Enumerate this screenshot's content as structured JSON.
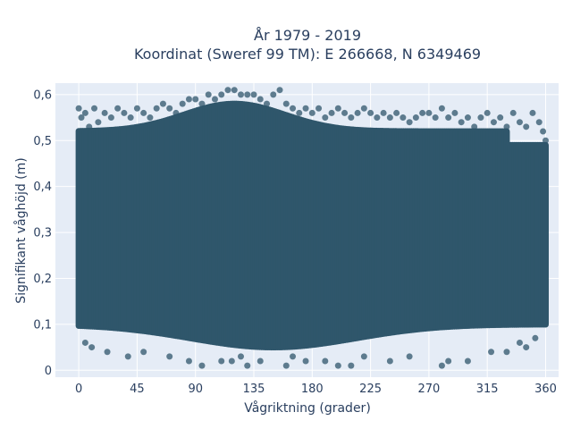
{
  "chart_data": {
    "type": "scatter",
    "title_line1": "År 1979 - 2019",
    "title_line2": "Koordinat (Sweref 99 TM): E 266668, N 6349469",
    "xlabel": "Vågriktning (grader)",
    "ylabel": "Signifikant våghöjd (m)",
    "xlim": [
      -18,
      370
    ],
    "ylim": [
      -0.015,
      0.625
    ],
    "x_ticks": [
      0,
      45,
      90,
      135,
      180,
      225,
      270,
      315,
      360
    ],
    "x_tick_labels": [
      "0",
      "45",
      "90",
      "135",
      "180",
      "225",
      "270",
      "315",
      "360"
    ],
    "y_ticks": [
      0,
      0.1,
      0.2,
      0.3,
      0.4,
      0.5,
      0.6
    ],
    "y_tick_labels": [
      "0",
      "0,1",
      "0,2",
      "0,3",
      "0,4",
      "0,5",
      "0,6"
    ],
    "grid": true,
    "legend": false,
    "colors": {
      "marker": "#2f566b",
      "plot_bg": "#e5ecf6",
      "grid": "#ffffff",
      "text": "#2a3f5f"
    },
    "series": [
      {
        "x": [
          0,
          2,
          5,
          8,
          12,
          15,
          20,
          25,
          30,
          35,
          40,
          45,
          50,
          55,
          60,
          65,
          70,
          75,
          80,
          85,
          90,
          95,
          100,
          105,
          110,
          115,
          120,
          125,
          130,
          135,
          140,
          145,
          150,
          155,
          160,
          165,
          170,
          175,
          180,
          185,
          190,
          195,
          200,
          205,
          210,
          215,
          220,
          225,
          230,
          235,
          240,
          245,
          250,
          255,
          260,
          265,
          270,
          275,
          280,
          285,
          290,
          295,
          300,
          305,
          310,
          315,
          320,
          325,
          330,
          335,
          340,
          345,
          350,
          355,
          358,
          360,
          95,
          110,
          125,
          130,
          118,
          160,
          175,
          200,
          220,
          240,
          280,
          300,
          330,
          345,
          5,
          10,
          22,
          38,
          50,
          70,
          85,
          140,
          165,
          190,
          210,
          255,
          285,
          318,
          340,
          352
        ],
        "y": [
          0.57,
          0.55,
          0.56,
          0.53,
          0.57,
          0.54,
          0.56,
          0.55,
          0.57,
          0.56,
          0.55,
          0.57,
          0.56,
          0.55,
          0.57,
          0.58,
          0.57,
          0.56,
          0.58,
          0.59,
          0.59,
          0.58,
          0.6,
          0.59,
          0.6,
          0.61,
          0.61,
          0.6,
          0.6,
          0.6,
          0.59,
          0.58,
          0.6,
          0.61,
          0.58,
          0.57,
          0.56,
          0.57,
          0.56,
          0.57,
          0.55,
          0.56,
          0.57,
          0.56,
          0.55,
          0.56,
          0.57,
          0.56,
          0.55,
          0.56,
          0.55,
          0.56,
          0.55,
          0.54,
          0.55,
          0.56,
          0.56,
          0.55,
          0.57,
          0.55,
          0.56,
          0.54,
          0.55,
          0.53,
          0.55,
          0.56,
          0.54,
          0.55,
          0.53,
          0.56,
          0.54,
          0.53,
          0.56,
          0.54,
          0.52,
          0.5,
          0.01,
          0.02,
          0.03,
          0.01,
          0.02,
          0.01,
          0.02,
          0.01,
          0.03,
          0.02,
          0.01,
          0.02,
          0.04,
          0.05,
          0.06,
          0.05,
          0.04,
          0.03,
          0.04,
          0.03,
          0.02,
          0.02,
          0.03,
          0.02,
          0.01,
          0.03,
          0.02,
          0.04,
          0.06,
          0.07
        ]
      }
    ]
  }
}
